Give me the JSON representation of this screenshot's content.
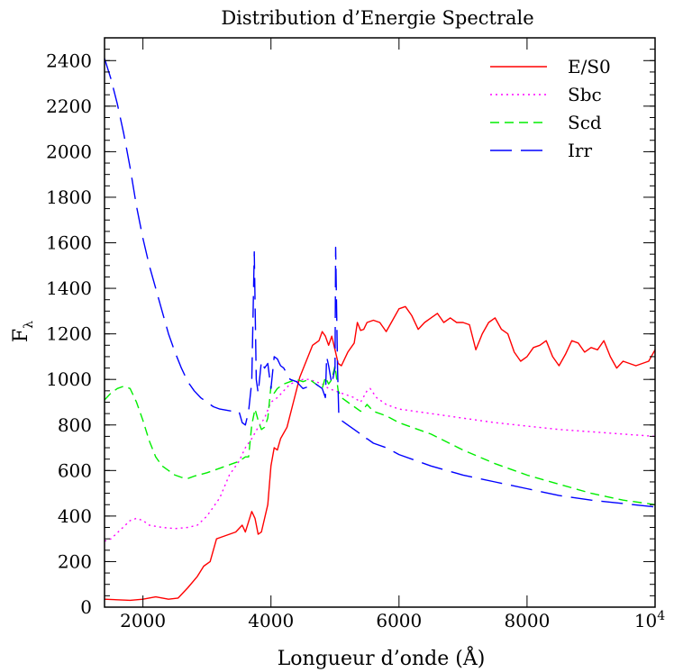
{
  "chart_data": {
    "type": "line",
    "title": "Distribution d’Energie Spectrale",
    "xlabel": "Longueur d’onde (Å)",
    "ylabel_main": "F",
    "ylabel_sub": "λ",
    "xlim": [
      1400,
      10000
    ],
    "ylim": [
      0,
      2500
    ],
    "x_ticks": [
      {
        "value": 2000,
        "label": "2000"
      },
      {
        "value": 4000,
        "label": "4000"
      },
      {
        "value": 6000,
        "label": "6000"
      },
      {
        "value": 8000,
        "label": "8000"
      },
      {
        "value": 10000,
        "label": "10",
        "sup": "4"
      }
    ],
    "y_ticks": [
      {
        "value": 0,
        "label": "0"
      },
      {
        "value": 200,
        "label": "200"
      },
      {
        "value": 400,
        "label": "400"
      },
      {
        "value": 600,
        "label": "600"
      },
      {
        "value": 800,
        "label": "800"
      },
      {
        "value": 1000,
        "label": "1000"
      },
      {
        "value": 1200,
        "label": "1200"
      },
      {
        "value": 1400,
        "label": "1400"
      },
      {
        "value": 1600,
        "label": "1600"
      },
      {
        "value": 1800,
        "label": "1800"
      },
      {
        "value": 2000,
        "label": "2000"
      },
      {
        "value": 2200,
        "label": "2200"
      },
      {
        "value": 2400,
        "label": "2400"
      }
    ],
    "x_minor_step": 500,
    "y_minor_step": 50,
    "legend_position": "top-right",
    "series": [
      {
        "name": "E/S0",
        "color": "#ff0000",
        "dash": "",
        "points": [
          [
            1400,
            35
          ],
          [
            1800,
            30
          ],
          [
            2000,
            35
          ],
          [
            2200,
            45
          ],
          [
            2400,
            35
          ],
          [
            2550,
            40
          ],
          [
            2700,
            85
          ],
          [
            2850,
            135
          ],
          [
            2950,
            180
          ],
          [
            3050,
            200
          ],
          [
            3150,
            300
          ],
          [
            3200,
            305
          ],
          [
            3350,
            320
          ],
          [
            3450,
            330
          ],
          [
            3550,
            360
          ],
          [
            3600,
            330
          ],
          [
            3700,
            420
          ],
          [
            3750,
            390
          ],
          [
            3800,
            320
          ],
          [
            3850,
            330
          ],
          [
            3950,
            450
          ],
          [
            4000,
            620
          ],
          [
            4050,
            700
          ],
          [
            4100,
            690
          ],
          [
            4150,
            740
          ],
          [
            4250,
            790
          ],
          [
            4350,
            900
          ],
          [
            4450,
            1010
          ],
          [
            4550,
            1080
          ],
          [
            4650,
            1150
          ],
          [
            4750,
            1170
          ],
          [
            4800,
            1210
          ],
          [
            4850,
            1190
          ],
          [
            4900,
            1150
          ],
          [
            4950,
            1190
          ],
          [
            5000,
            1130
          ],
          [
            5050,
            1070
          ],
          [
            5100,
            1060
          ],
          [
            5200,
            1120
          ],
          [
            5300,
            1160
          ],
          [
            5350,
            1250
          ],
          [
            5400,
            1215
          ],
          [
            5450,
            1220
          ],
          [
            5500,
            1250
          ],
          [
            5600,
            1260
          ],
          [
            5700,
            1250
          ],
          [
            5800,
            1210
          ],
          [
            5900,
            1260
          ],
          [
            6000,
            1310
          ],
          [
            6100,
            1320
          ],
          [
            6200,
            1280
          ],
          [
            6300,
            1220
          ],
          [
            6400,
            1250
          ],
          [
            6500,
            1270
          ],
          [
            6600,
            1290
          ],
          [
            6700,
            1250
          ],
          [
            6800,
            1270
          ],
          [
            6900,
            1250
          ],
          [
            7000,
            1250
          ],
          [
            7100,
            1240
          ],
          [
            7200,
            1130
          ],
          [
            7300,
            1200
          ],
          [
            7400,
            1250
          ],
          [
            7500,
            1270
          ],
          [
            7600,
            1220
          ],
          [
            7700,
            1200
          ],
          [
            7800,
            1120
          ],
          [
            7900,
            1080
          ],
          [
            8000,
            1100
          ],
          [
            8100,
            1140
          ],
          [
            8200,
            1150
          ],
          [
            8300,
            1170
          ],
          [
            8400,
            1100
          ],
          [
            8500,
            1060
          ],
          [
            8600,
            1110
          ],
          [
            8700,
            1170
          ],
          [
            8800,
            1160
          ],
          [
            8900,
            1120
          ],
          [
            9000,
            1140
          ],
          [
            9100,
            1130
          ],
          [
            9200,
            1170
          ],
          [
            9300,
            1100
          ],
          [
            9400,
            1050
          ],
          [
            9500,
            1080
          ],
          [
            9600,
            1070
          ],
          [
            9700,
            1060
          ],
          [
            9800,
            1070
          ],
          [
            9900,
            1080
          ],
          [
            10000,
            1130
          ]
        ]
      },
      {
        "name": "Sbc",
        "color": "#ff00ff",
        "dash": "2,4",
        "points": [
          [
            1400,
            290
          ],
          [
            1500,
            300
          ],
          [
            1650,
            340
          ],
          [
            1800,
            380
          ],
          [
            1900,
            390
          ],
          [
            2000,
            380
          ],
          [
            2100,
            360
          ],
          [
            2300,
            350
          ],
          [
            2500,
            345
          ],
          [
            2700,
            350
          ],
          [
            2850,
            360
          ],
          [
            3000,
            400
          ],
          [
            3200,
            480
          ],
          [
            3350,
            580
          ],
          [
            3500,
            640
          ],
          [
            3600,
            700
          ],
          [
            3700,
            740
          ],
          [
            3800,
            790
          ],
          [
            3900,
            830
          ],
          [
            4000,
            900
          ],
          [
            4100,
            920
          ],
          [
            4200,
            950
          ],
          [
            4300,
            980
          ],
          [
            4400,
            990
          ],
          [
            4500,
            1000
          ],
          [
            4600,
            1000
          ],
          [
            4700,
            990
          ],
          [
            4800,
            980
          ],
          [
            4900,
            960
          ],
          [
            5000,
            950
          ],
          [
            5100,
            940
          ],
          [
            5200,
            930
          ],
          [
            5300,
            920
          ],
          [
            5400,
            900
          ],
          [
            5500,
            950
          ],
          [
            5550,
            960
          ],
          [
            5650,
            920
          ],
          [
            5800,
            890
          ],
          [
            6000,
            870
          ],
          [
            6500,
            850
          ],
          [
            7000,
            830
          ],
          [
            7500,
            810
          ],
          [
            8000,
            795
          ],
          [
            8500,
            780
          ],
          [
            9000,
            770
          ],
          [
            9500,
            760
          ],
          [
            10000,
            750
          ]
        ]
      },
      {
        "name": "Scd",
        "color": "#00ee00",
        "dash": "10,6",
        "points": [
          [
            1400,
            910
          ],
          [
            1500,
            940
          ],
          [
            1600,
            960
          ],
          [
            1700,
            970
          ],
          [
            1800,
            960
          ],
          [
            1900,
            900
          ],
          [
            2000,
            820
          ],
          [
            2100,
            730
          ],
          [
            2200,
            660
          ],
          [
            2300,
            620
          ],
          [
            2400,
            600
          ],
          [
            2500,
            580
          ],
          [
            2600,
            570
          ],
          [
            2700,
            565
          ],
          [
            2800,
            575
          ],
          [
            3000,
            590
          ],
          [
            3200,
            610
          ],
          [
            3400,
            630
          ],
          [
            3500,
            640
          ],
          [
            3600,
            660
          ],
          [
            3650,
            660
          ],
          [
            3700,
            800
          ],
          [
            3750,
            870
          ],
          [
            3800,
            820
          ],
          [
            3850,
            780
          ],
          [
            3900,
            790
          ],
          [
            3950,
            830
          ],
          [
            4000,
            970
          ],
          [
            4050,
            940
          ],
          [
            4100,
            960
          ],
          [
            4200,
            980
          ],
          [
            4300,
            990
          ],
          [
            4400,
            1000
          ],
          [
            4500,
            990
          ],
          [
            4600,
            1000
          ],
          [
            4700,
            980
          ],
          [
            4800,
            960
          ],
          [
            4850,
            1010
          ],
          [
            4900,
            980
          ],
          [
            4950,
            1000
          ],
          [
            5000,
            1060
          ],
          [
            5050,
            950
          ],
          [
            5100,
            920
          ],
          [
            5200,
            900
          ],
          [
            5300,
            880
          ],
          [
            5400,
            860
          ],
          [
            5450,
            870
          ],
          [
            5500,
            890
          ],
          [
            5600,
            860
          ],
          [
            5800,
            840
          ],
          [
            6000,
            810
          ],
          [
            6500,
            760
          ],
          [
            7000,
            690
          ],
          [
            7500,
            630
          ],
          [
            8000,
            580
          ],
          [
            8500,
            540
          ],
          [
            9000,
            500
          ],
          [
            9500,
            470
          ],
          [
            10000,
            450
          ]
        ]
      },
      {
        "name": "Irr",
        "color": "#0000ff",
        "dash": "24,10",
        "points": [
          [
            1400,
            2410
          ],
          [
            1500,
            2320
          ],
          [
            1600,
            2210
          ],
          [
            1700,
            2080
          ],
          [
            1800,
            1930
          ],
          [
            1900,
            1760
          ],
          [
            2000,
            1620
          ],
          [
            2100,
            1500
          ],
          [
            2200,
            1400
          ],
          [
            2300,
            1300
          ],
          [
            2400,
            1200
          ],
          [
            2500,
            1120
          ],
          [
            2600,
            1050
          ],
          [
            2700,
            990
          ],
          [
            2800,
            950
          ],
          [
            2900,
            920
          ],
          [
            3000,
            900
          ],
          [
            3100,
            880
          ],
          [
            3200,
            870
          ],
          [
            3300,
            865
          ],
          [
            3400,
            860
          ],
          [
            3500,
            860
          ],
          [
            3550,
            810
          ],
          [
            3600,
            800
          ],
          [
            3650,
            860
          ],
          [
            3700,
            990
          ],
          [
            3740,
            1560
          ],
          [
            3770,
            1000
          ],
          [
            3800,
            940
          ],
          [
            3850,
            1080
          ],
          [
            3900,
            1050
          ],
          [
            3950,
            1070
          ],
          [
            4000,
            960
          ],
          [
            4050,
            1100
          ],
          [
            4100,
            1090
          ],
          [
            4150,
            1060
          ],
          [
            4200,
            1050
          ],
          [
            4300,
            1000
          ],
          [
            4400,
            990
          ],
          [
            4500,
            960
          ],
          [
            4600,
            970
          ],
          [
            4700,
            980
          ],
          [
            4800,
            960
          ],
          [
            4850,
            920
          ],
          [
            4870,
            1100
          ],
          [
            4900,
            1060
          ],
          [
            4950,
            980
          ],
          [
            5000,
            1050
          ],
          [
            5010,
            1580
          ],
          [
            5040,
            1050
          ],
          [
            5060,
            840
          ],
          [
            5100,
            820
          ],
          [
            5200,
            800
          ],
          [
            5300,
            780
          ],
          [
            5400,
            760
          ],
          [
            5450,
            740
          ],
          [
            5500,
            740
          ],
          [
            5600,
            720
          ],
          [
            5800,
            700
          ],
          [
            6000,
            670
          ],
          [
            6500,
            620
          ],
          [
            7000,
            580
          ],
          [
            7500,
            550
          ],
          [
            8000,
            520
          ],
          [
            8500,
            490
          ],
          [
            9000,
            470
          ],
          [
            9500,
            455
          ],
          [
            10000,
            440
          ]
        ]
      }
    ]
  }
}
